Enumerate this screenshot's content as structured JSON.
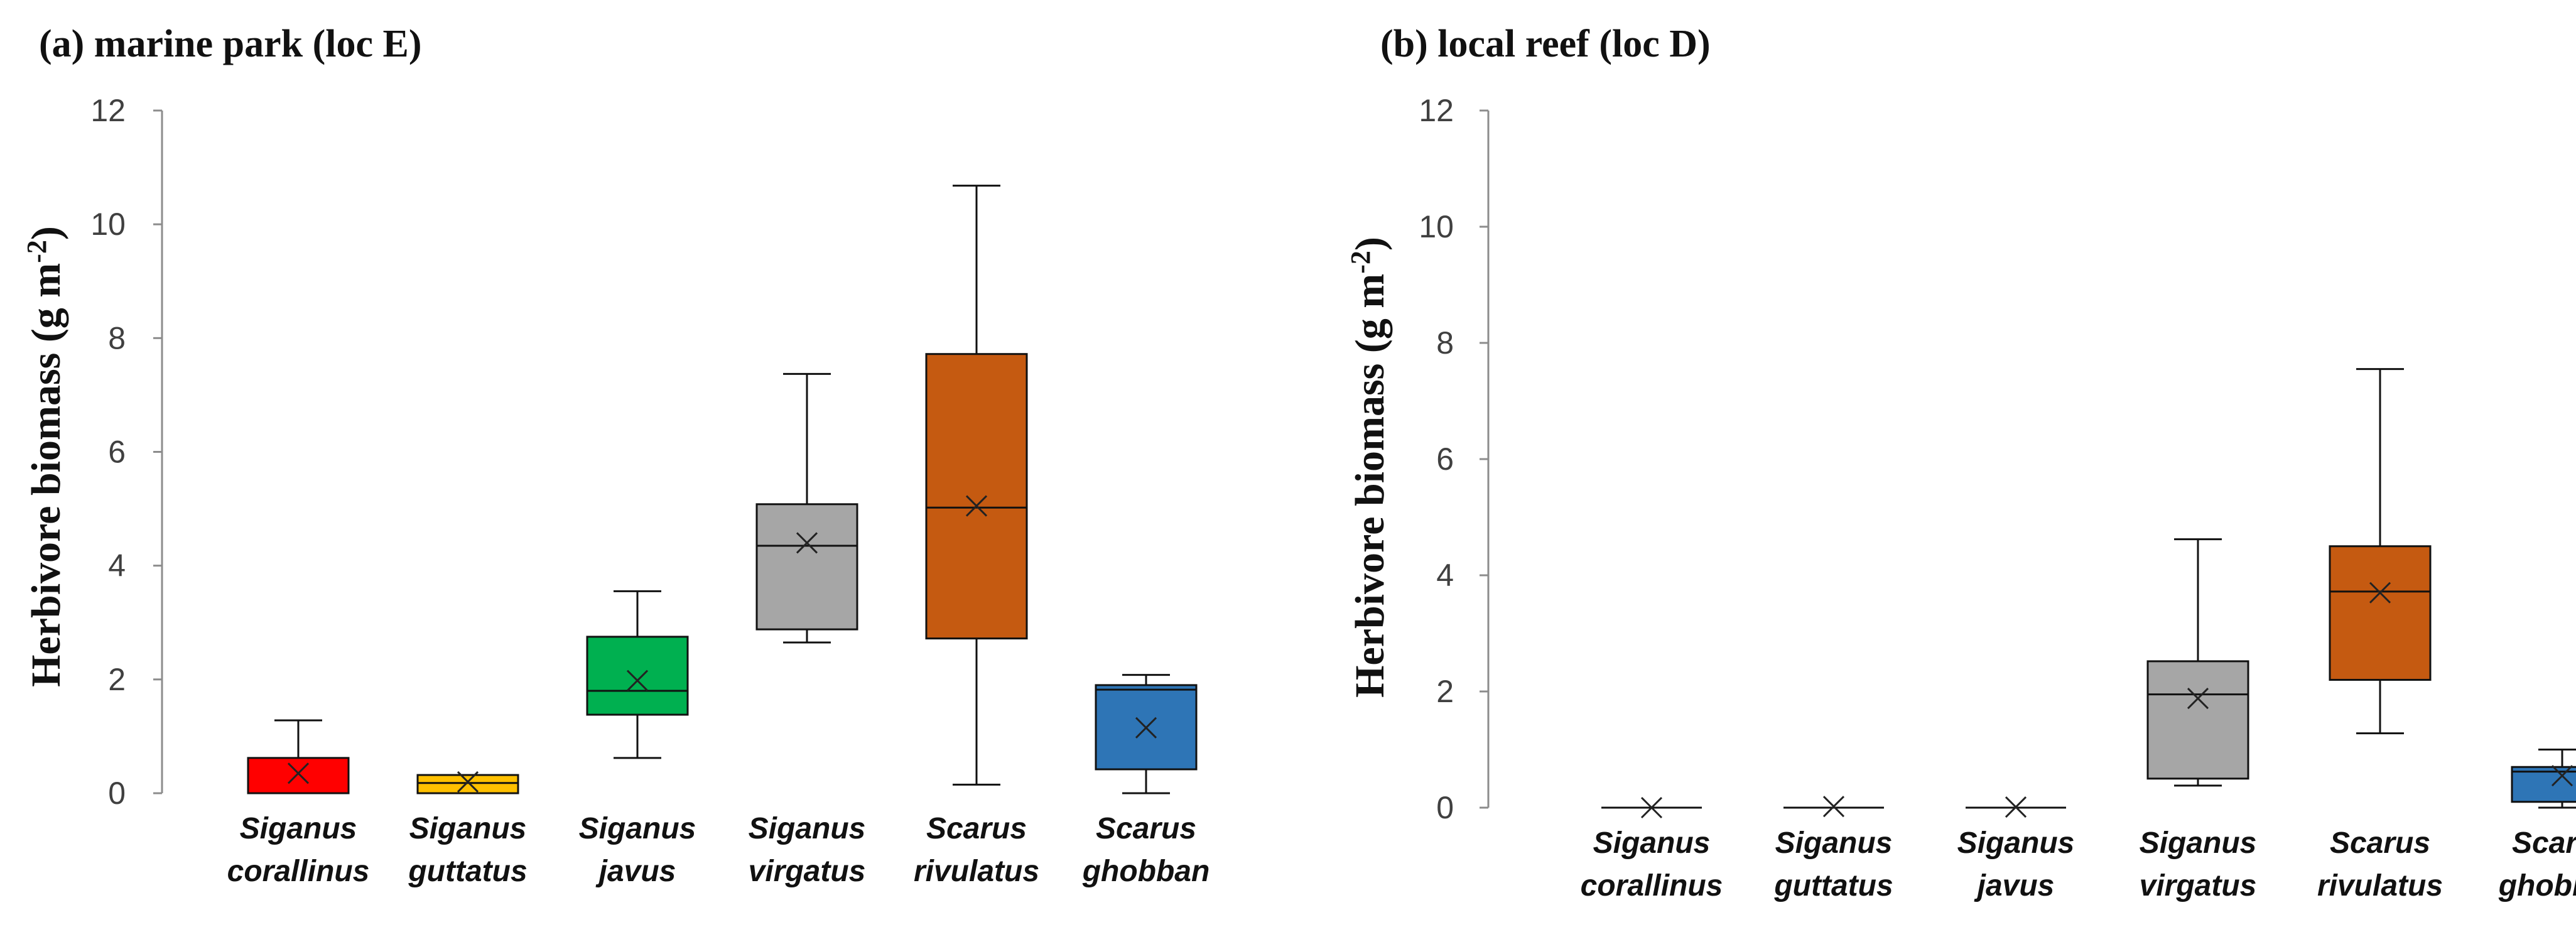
{
  "chart_data": [
    {
      "type": "box",
      "title": "(a) marine park (loc E)",
      "ylabel": "Herbivore biomass (g m",
      "ylabel_sup": "-2",
      "ylabel_close": ")",
      "ylim": [
        0,
        12
      ],
      "yticks": [
        0,
        2,
        4,
        6,
        8,
        10,
        12
      ],
      "categories": [
        {
          "line1": "Siganus",
          "line2": "corallinus"
        },
        {
          "line1": "Siganus",
          "line2": "guttatus"
        },
        {
          "line1": "Siganus",
          "line2": "javus"
        },
        {
          "line1": "Siganus",
          "line2": "virgatus"
        },
        {
          "line1": "Scarus",
          "line2": "rivulatus"
        },
        {
          "line1": "Scarus",
          "line2": "ghobban"
        }
      ],
      "boxes": [
        {
          "min": 0.0,
          "q1": 0.0,
          "median": 0.0,
          "q3": 0.62,
          "max": 1.28,
          "mean": 0.35,
          "color": "#ff0000"
        },
        {
          "min": 0.0,
          "q1": 0.0,
          "median": 0.18,
          "q3": 0.32,
          "max": 0.32,
          "mean": 0.2,
          "color": "#ffc000"
        },
        {
          "min": 0.62,
          "q1": 1.38,
          "median": 1.8,
          "q3": 2.75,
          "max": 3.55,
          "mean": 1.98,
          "color": "#00b050"
        },
        {
          "min": 2.65,
          "q1": 2.88,
          "median": 4.35,
          "q3": 5.08,
          "max": 7.37,
          "mean": 4.4,
          "color": "#a6a6a6"
        },
        {
          "min": 0.15,
          "q1": 2.72,
          "median": 5.02,
          "q3": 7.72,
          "max": 10.68,
          "mean": 5.05,
          "color": "#c55a11"
        },
        {
          "min": 0.0,
          "q1": 0.42,
          "median": 1.82,
          "q3": 1.9,
          "max": 2.08,
          "mean": 1.15,
          "color": "#2e75b6"
        }
      ]
    },
    {
      "type": "box",
      "title": "(b) local reef (loc D)",
      "ylabel": "Herbivore biomass (g m",
      "ylabel_sup": "-2",
      "ylabel_close": ")",
      "ylim": [
        0,
        12
      ],
      "yticks": [
        0,
        2,
        4,
        6,
        8,
        10,
        12
      ],
      "categories": [
        {
          "line1": "Siganus",
          "line2": "corallinus"
        },
        {
          "line1": "Siganus",
          "line2": "guttatus"
        },
        {
          "line1": "Siganus",
          "line2": "javus"
        },
        {
          "line1": "Siganus",
          "line2": "virgatus"
        },
        {
          "line1": "Scarus",
          "line2": "rivulatus"
        },
        {
          "line1": "Scarus",
          "line2": "ghobban"
        }
      ],
      "boxes": [
        {
          "min": 0.0,
          "q1": 0.0,
          "median": 0.0,
          "q3": 0.0,
          "max": 0.0,
          "mean": 0.0,
          "color": "#ff0000"
        },
        {
          "min": 0.0,
          "q1": 0.0,
          "median": 0.0,
          "q3": 0.0,
          "max": 0.0,
          "mean": 0.02,
          "color": "#ffc000"
        },
        {
          "min": 0.0,
          "q1": 0.0,
          "median": 0.0,
          "q3": 0.0,
          "max": 0.0,
          "mean": 0.01,
          "color": "#00b050"
        },
        {
          "min": 0.38,
          "q1": 0.5,
          "median": 1.95,
          "q3": 2.52,
          "max": 4.62,
          "mean": 1.88,
          "color": "#a6a6a6"
        },
        {
          "min": 1.28,
          "q1": 2.2,
          "median": 3.72,
          "q3": 4.5,
          "max": 7.55,
          "mean": 3.7,
          "color": "#c55a11"
        },
        {
          "min": 0.0,
          "q1": 0.1,
          "median": 0.62,
          "q3": 0.7,
          "max": 1.0,
          "mean": 0.55,
          "color": "#2e75b6"
        }
      ]
    }
  ]
}
